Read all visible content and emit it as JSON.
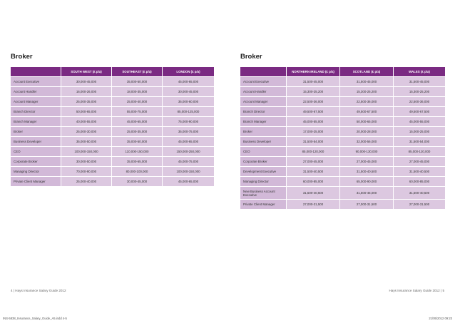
{
  "left": {
    "title": "Broker",
    "headers": [
      "",
      "SOUTH WEST (£ p/a)",
      "SOUTHEAST (£ p/a)",
      "LONDON (£ p/a)"
    ],
    "rows": [
      [
        "Account Executive",
        "30,000-45,000",
        "35,000-50,000",
        "45,000-65,000"
      ],
      [
        "Account Handler",
        "16,000-26,000",
        "18,000-35,000",
        "30,000-45,000"
      ],
      [
        "Account Manager",
        "25,000-35,000",
        "25,000-40,000",
        "35,000-60,000"
      ],
      [
        "Branch Director",
        "50,000-65,000",
        "55,000-75,000",
        "85,000-125,000"
      ],
      [
        "Branch Manager",
        "40,000-55,000",
        "45,000-65,000",
        "75,000-90,000"
      ],
      [
        "Broker",
        "25,000-30,000",
        "25,000-35,000",
        "35,000-75,000"
      ],
      [
        "Business Developer",
        "35,000-50,000",
        "35,000-50,000",
        "45,000-65,000"
      ],
      [
        "CEO",
        "100,000-150,000",
        "110,000-150,000",
        "150,000-250,000"
      ],
      [
        "Corporate Broker",
        "30,000-50,000",
        "35,000-65,000",
        "45,000-75,000"
      ],
      [
        "Managing Director",
        "70,000-90,000",
        "80,000-100,000",
        "100,000-150,000"
      ],
      [
        "Private Client Manager",
        "25,000-40,000",
        "30,000-45,000",
        "45,000-65,000"
      ]
    ],
    "footer": "4 | Hays Insurance Salary Guide 2012"
  },
  "right": {
    "title": "Broker",
    "headers": [
      "",
      "NORTHERN IRELAND (£ p/a)",
      "SCOTLAND (£ p/a)",
      "WALES (£ p/a)"
    ],
    "rows": [
      [
        "Account Executive",
        "31,500-45,000",
        "31,500-45,000",
        "31,500-45,000"
      ],
      [
        "Account Handler",
        "15,300-25,200",
        "15,300-25,200",
        "15,300-25,200"
      ],
      [
        "Account Manager",
        "22,500-36,000",
        "22,500-36,000",
        "22,500-36,000"
      ],
      [
        "Branch Director",
        "49,500-67,500",
        "49,500-67,500",
        "49,500-67,500"
      ],
      [
        "Branch Manager",
        "45,000-55,000",
        "50,000-65,000",
        "45,000-55,000"
      ],
      [
        "Broker",
        "17,000-25,000",
        "20,000-28,000",
        "15,000-25,000"
      ],
      [
        "Business Developer",
        "31,500-54,000",
        "32,000-56,000",
        "31,500-54,000"
      ],
      [
        "CEO",
        "85,000-120,000",
        "90,000-130,000",
        "85,000-120,000"
      ],
      [
        "Corporate Broker",
        "27,000-45,000",
        "27,000-45,000",
        "27,000-45,000"
      ],
      [
        "Development Executive",
        "31,500-40,500",
        "31,500-40,500",
        "31,500-40,500"
      ],
      [
        "Managing Director",
        "60,000-85,000",
        "65,000-90,000",
        "60,000-85,000"
      ],
      [
        "New Business Account Executive",
        "31,500-40,500",
        "31,500-45,000",
        "31,500-40,500"
      ],
      [
        "Private Client Manager",
        "27,000-31,500",
        "27,000-31,500",
        "27,000-31,500"
      ]
    ],
    "footer": "Hays Insurance Salary Guide 2012 | 5"
  },
  "slug": {
    "file": "INS-5838_Insurance_Salary_Guide_A5.indd 4-5",
    "date": "21/05/2012   09:23"
  }
}
